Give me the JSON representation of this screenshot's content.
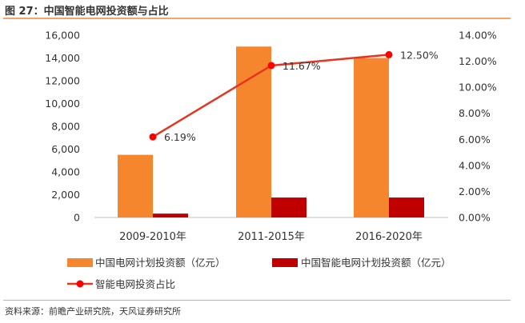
{
  "header": {
    "figure_title": "图 27：中国智能电网投资额与占比"
  },
  "footer": {
    "source": "资料来源：前瞻产业研究院，天风证券研究所"
  },
  "chart_data": {
    "type": "bar",
    "categories": [
      "2009-2010年",
      "2011-2015年",
      "2016-2020年"
    ],
    "series": [
      {
        "name": "中国电网计划投资额（亿元）",
        "type": "bar",
        "axis": "left",
        "color": "#f5862d",
        "values": [
          5500,
          15000,
          14000
        ]
      },
      {
        "name": "中国智能电网计划投资额（亿元）",
        "type": "bar",
        "axis": "left",
        "color": "#c00000",
        "values": [
          340,
          1750,
          1750
        ]
      },
      {
        "name": "智能电网投资占比",
        "type": "line",
        "axis": "right",
        "color": "#e8341e",
        "values": [
          6.19,
          11.67,
          12.5
        ],
        "labels": [
          "6.19%",
          "11.67%",
          "12.50%"
        ]
      }
    ],
    "y_left": {
      "ylim": [
        0,
        16000
      ],
      "ticks": [
        "0",
        "2,000",
        "4,000",
        "6,000",
        "8,000",
        "10,000",
        "12,000",
        "14,000",
        "16,000"
      ]
    },
    "y_right": {
      "ylim": [
        0,
        14
      ],
      "ticks": [
        "0.00%",
        "2.00%",
        "4.00%",
        "6.00%",
        "8.00%",
        "10.00%",
        "12.00%",
        "14.00%"
      ]
    },
    "grid": false,
    "legend": "bottom"
  }
}
